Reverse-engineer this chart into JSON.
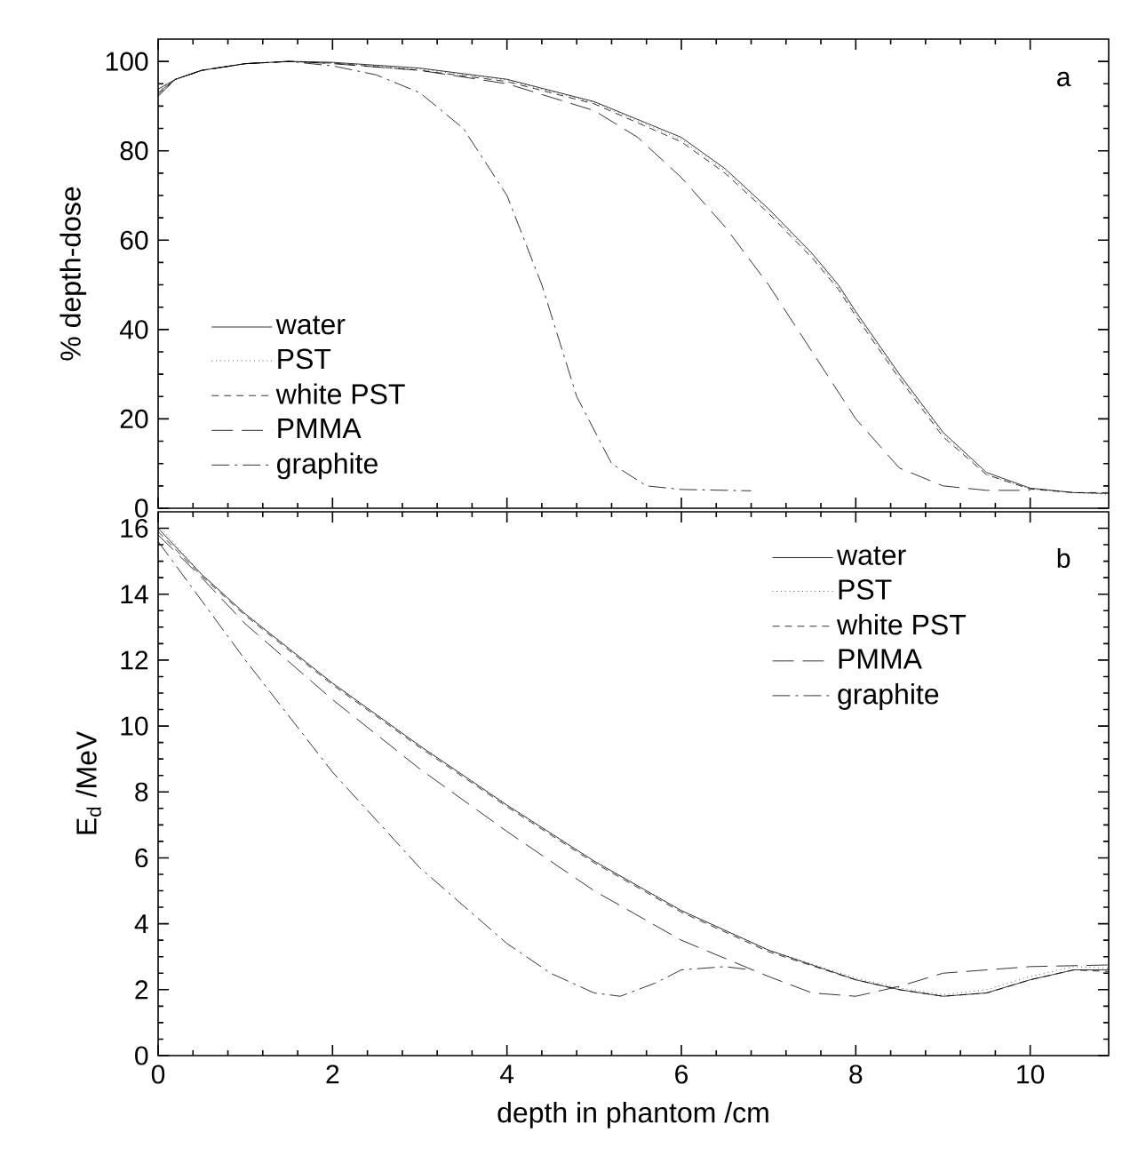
{
  "chart_data": [
    {
      "type": "line",
      "ylabel": "% depth-dose",
      "annotations": [
        "a"
      ],
      "xlim": [
        0,
        10.9
      ],
      "ylim": [
        0,
        105
      ],
      "xticks": [
        0,
        2,
        4,
        6,
        8,
        10
      ],
      "yticks": [
        0,
        20,
        40,
        60,
        80,
        100
      ],
      "tick_labels": "y",
      "legend": "left",
      "grid": false,
      "series": [
        {
          "name": "water",
          "color": "#000000",
          "line_style": "solid",
          "x": [
            0,
            0.2,
            0.5,
            1,
            1.5,
            2,
            3,
            4,
            5,
            6,
            6.5,
            7,
            7.5,
            7.8,
            8,
            8.5,
            9,
            9.5,
            10,
            10.5,
            10.9
          ],
          "values": [
            93,
            96,
            98,
            99.5,
            100,
            99.8,
            98.5,
            96,
            91,
            83,
            76,
            67,
            57,
            50,
            44,
            30,
            17,
            8,
            4.5,
            3.5,
            3.3
          ]
        },
        {
          "name": "PST",
          "color": "#000000",
          "line_style": "dotted",
          "x": [
            0,
            0.2,
            0.5,
            1,
            1.5,
            2,
            3,
            4,
            5,
            6,
            6.5,
            7,
            7.5,
            7.8,
            8,
            8.5,
            9,
            9.5,
            10,
            10.5,
            10.9
          ],
          "values": [
            93.4,
            96,
            98,
            99.5,
            100,
            99.7,
            98.3,
            95.8,
            90.8,
            82.5,
            75.5,
            66.5,
            56.5,
            49.5,
            43.5,
            29.5,
            16.5,
            7.5,
            4.3,
            3.5,
            3.1
          ]
        },
        {
          "name": "white PST",
          "color": "#000000",
          "line_style": "dashed",
          "x": [
            0,
            0.2,
            0.5,
            1,
            1.5,
            2,
            3,
            4,
            5,
            6,
            6.5,
            7,
            7.5,
            7.8,
            8,
            8.5,
            9,
            9.5,
            10,
            10.5,
            10.9
          ],
          "values": [
            92.6,
            96,
            98,
            99.5,
            100,
            99.6,
            98,
            95.5,
            90.5,
            82,
            75,
            66,
            56,
            49,
            43,
            29,
            16,
            7.5,
            4.3,
            3.5,
            3.5
          ]
        },
        {
          "name": "PMMA",
          "color": "#000000",
          "line_style": "long dashed",
          "x": [
            0,
            0.2,
            0.5,
            1,
            1.5,
            2,
            3,
            4,
            5,
            5.5,
            6,
            6.5,
            7,
            7.5,
            8,
            8.5,
            9,
            9.5,
            10
          ],
          "values": [
            93.8,
            96,
            98,
            99.5,
            100,
            99.5,
            98,
            95,
            89,
            83,
            74,
            63,
            50,
            35,
            20,
            9,
            5,
            4,
            4
          ]
        },
        {
          "name": "graphite",
          "color": "#000000",
          "line_style": "dashdot",
          "x": [
            0,
            0.2,
            0.5,
            1,
            1.5,
            2,
            2.5,
            3,
            3.5,
            4,
            4.4,
            4.8,
            5.2,
            5.6,
            6,
            6.8
          ],
          "values": [
            92.2,
            96,
            98,
            99.5,
            100,
            99,
            97,
            93,
            85,
            70,
            50,
            25,
            10,
            5,
            4.2,
            3.9
          ]
        }
      ]
    },
    {
      "type": "line",
      "xlabel": "depth in phantom /cm",
      "ylabel": "E$_{d}$ /MeV",
      "annotations": [
        "b"
      ],
      "xlim": [
        0,
        10.9
      ],
      "ylim": [
        0,
        16.5
      ],
      "xticks": [
        0,
        2,
        4,
        6,
        8,
        10
      ],
      "yticks": [
        0,
        2,
        4,
        6,
        8,
        10,
        12,
        14,
        16
      ],
      "legend": "top right",
      "grid": false,
      "series": [
        {
          "name": "water",
          "color": "#000000",
          "line_style": "solid",
          "x": [
            0,
            0.5,
            1,
            2,
            3,
            4,
            5,
            6,
            7,
            8,
            8.5,
            9,
            9.5,
            10,
            10.5,
            10.9
          ],
          "values": [
            16,
            14.6,
            13.4,
            11.3,
            9.4,
            7.6,
            5.9,
            4.4,
            3.2,
            2.3,
            2,
            1.8,
            1.9,
            2.3,
            2.6,
            2.6
          ]
        },
        {
          "name": "PST",
          "color": "#000000",
          "line_style": "dotted",
          "x": [
            0,
            0.5,
            1,
            2,
            3,
            4,
            5,
            6,
            7,
            8,
            8.5,
            9,
            9.5,
            10,
            10.5,
            10.9
          ],
          "values": [
            16.1,
            14.6,
            13.4,
            11.3,
            9.4,
            7.6,
            5.9,
            4.4,
            3.2,
            2.35,
            2.05,
            1.85,
            2,
            2.4,
            2.7,
            2.65
          ]
        },
        {
          "name": "white PST",
          "color": "#000000",
          "line_style": "dashed",
          "x": [
            0,
            0.5,
            1,
            2,
            3,
            4,
            5,
            6,
            7,
            8,
            8.5,
            9,
            9.5,
            10,
            10.5,
            10.9
          ],
          "values": [
            15.9,
            14.55,
            13.35,
            11.25,
            9.35,
            7.55,
            5.85,
            4.35,
            3.15,
            2.3,
            2,
            1.8,
            1.9,
            2.3,
            2.6,
            2.55
          ]
        },
        {
          "name": "PMMA",
          "color": "#000000",
          "line_style": "long dashed",
          "x": [
            0,
            0.5,
            1,
            2,
            3,
            4,
            5,
            6,
            7,
            7.5,
            8,
            8.5,
            9,
            10,
            10.9
          ],
          "values": [
            15.8,
            14.5,
            13.1,
            10.8,
            8.7,
            6.8,
            5,
            3.5,
            2.4,
            1.9,
            1.8,
            2.1,
            2.5,
            2.7,
            2.75
          ]
        },
        {
          "name": "graphite",
          "color": "#000000",
          "line_style": "dashdot",
          "x": [
            0,
            0.5,
            1,
            2,
            3,
            4,
            4.5,
            5,
            5.3,
            5.7,
            6,
            6.5,
            6.8
          ],
          "values": [
            15.6,
            13.8,
            12,
            8.6,
            5.7,
            3.4,
            2.5,
            1.9,
            1.8,
            2.2,
            2.6,
            2.7,
            2.6
          ]
        }
      ]
    }
  ]
}
